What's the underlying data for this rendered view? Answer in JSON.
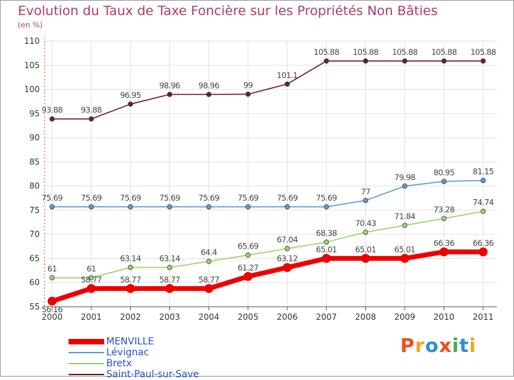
{
  "title": "Evolution du Taux de Taxe Foncière sur les Propriétés Non Bâties",
  "unit_label": "(en %)",
  "logo": {
    "text": "Proxiti",
    "colors": [
      "#e94e1b",
      "#f7a21b",
      "#2a8fd6",
      "#e94e1b",
      "#3cb44a",
      "#2a8fd6",
      "#f7a21b"
    ]
  },
  "chart_data": {
    "type": "line",
    "x": [
      "2000",
      "2001",
      "2002",
      "2003",
      "2004",
      "2005",
      "2006",
      "2007",
      "2008",
      "2009",
      "2010",
      "2011"
    ],
    "ylim": [
      55,
      110
    ],
    "yticks": [
      55,
      60,
      65,
      70,
      75,
      80,
      85,
      90,
      95,
      100,
      105,
      110
    ],
    "grid": true,
    "legend_position": "bottom",
    "series": [
      {
        "name": "MENVILLE",
        "color": "#ee0000",
        "values": [
          56.16,
          58.77,
          58.77,
          58.77,
          58.77,
          61.27,
          63.12,
          65.01,
          65.01,
          65.01,
          66.36,
          66.36
        ],
        "labels": [
          "56.16",
          "58.77",
          "58.77",
          "58.77",
          "58.77",
          "61.27",
          "63.12",
          "65.01",
          "65.01",
          "65.01",
          "66.36",
          "66.36"
        ]
      },
      {
        "name": "Lévignac",
        "color": "#5b9bd5",
        "values": [
          75.69,
          75.69,
          75.69,
          75.69,
          75.69,
          75.69,
          75.69,
          75.69,
          77,
          79.98,
          80.95,
          81.15
        ],
        "labels": [
          "75.69",
          "75.69",
          "75.69",
          "75.69",
          "75.69",
          "75.69",
          "75.69",
          "75.69",
          "77",
          "79.98",
          "80.95",
          "81.15"
        ]
      },
      {
        "name": "Bretx",
        "color": "#9bd36b",
        "values": [
          61,
          61,
          63.14,
          63.14,
          64.4,
          65.69,
          67.04,
          68.38,
          70.43,
          71.84,
          73.28,
          74.74
        ],
        "labels": [
          "61",
          "61",
          "63.14",
          "63.14",
          "64.4",
          "65.69",
          "67.04",
          "68.38",
          "70.43",
          "71.84",
          "73.28",
          "74.74"
        ]
      },
      {
        "name": "Saint-Paul-sur-Save",
        "color": "#6b1f1f",
        "values": [
          93.88,
          93.88,
          96.95,
          98.96,
          98.96,
          99,
          101.1,
          105.88,
          105.88,
          105.88,
          105.88,
          105.88
        ],
        "labels": [
          "93.88",
          "93.88",
          "96.95",
          "98.96",
          "98.96",
          "99",
          "101.1",
          "105.88",
          "105.88",
          "105.88",
          "105.88",
          "105.88"
        ]
      }
    ]
  }
}
